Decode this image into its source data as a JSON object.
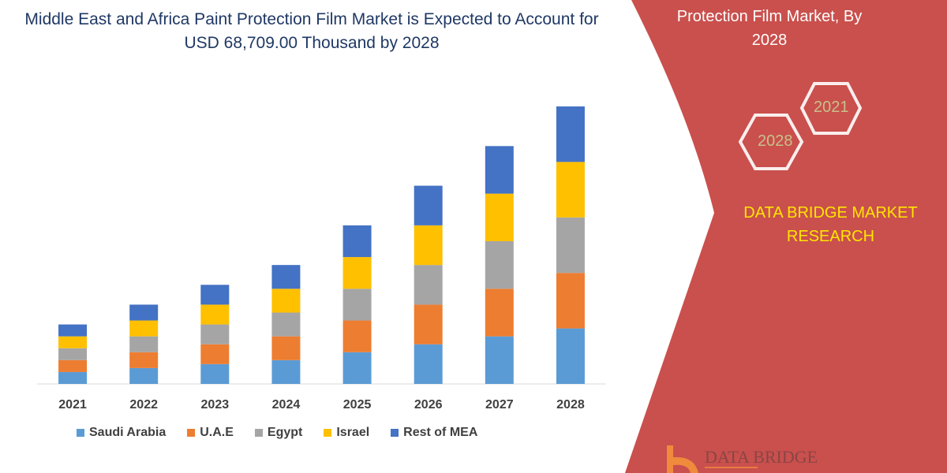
{
  "title": "Middle East and Africa Paint Protection Film Market is Expected to Account for USD 68,709.00 Thousand by 2028",
  "side_panel": {
    "title": "Protection Film Market, By 2028",
    "hex_2021": "2021",
    "hex_2028": "2028",
    "brand": "DATA BRIDGE MARKET RESEARCH",
    "logo_text": "DATA BRIDGE",
    "panel_color": "#c9504d",
    "brand_color": "#ffe500"
  },
  "chart_data": {
    "type": "bar",
    "stacked": true,
    "title": "Middle East and Africa Paint Protection Film Market is Expected to Account for USD 68,709.00 Thousand by 2028",
    "xlabel": "",
    "ylabel": "",
    "y_axis_shown": false,
    "grid": false,
    "legend_position": "bottom",
    "categories": [
      "2021",
      "2022",
      "2023",
      "2024",
      "2025",
      "2026",
      "2027",
      "2028"
    ],
    "series": [
      {
        "name": "Saudi Arabia",
        "color": "#5b9bd5",
        "values": [
          15,
          20,
          25,
          30,
          40,
          50,
          60,
          70
        ]
      },
      {
        "name": "U.A.E",
        "color": "#ed7d31",
        "values": [
          15,
          20,
          25,
          30,
          40,
          50,
          60,
          70
        ]
      },
      {
        "name": "Egypt",
        "color": "#a5a5a5",
        "values": [
          15,
          20,
          25,
          30,
          40,
          50,
          60,
          70
        ]
      },
      {
        "name": "Israel",
        "color": "#ffc000",
        "values": [
          15,
          20,
          25,
          30,
          40,
          50,
          60,
          70
        ]
      },
      {
        "name": "Rest of MEA",
        "color": "#4472c4",
        "values": [
          15,
          20,
          25,
          30,
          40,
          50,
          60,
          70
        ]
      }
    ]
  }
}
